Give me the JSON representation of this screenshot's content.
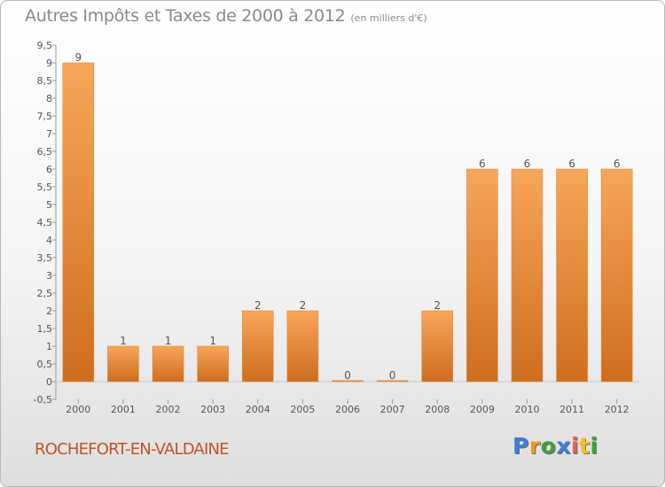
{
  "page": {
    "commune": "ROCHEFORT-EN-VALDAINE"
  },
  "brand": {
    "letters": [
      {
        "ch": "P",
        "color": "#3e7fd6"
      },
      {
        "ch": "r",
        "color": "#f29a1d"
      },
      {
        "ch": "o",
        "color": "#3ea33c"
      },
      {
        "ch": "x",
        "color": "#3e7fd6"
      },
      {
        "ch": "i",
        "color": "#e85c5c"
      },
      {
        "ch": "t",
        "color": "#f2c21d"
      },
      {
        "ch": "i",
        "color": "#3ea33c"
      }
    ]
  },
  "chart_data": {
    "type": "bar",
    "title": "Autres Impôts et Taxes de 2000 à 2012",
    "subtitle": "(en milliers d'€)",
    "xlabel": "",
    "ylabel": "",
    "categories": [
      "2000",
      "2001",
      "2002",
      "2003",
      "2004",
      "2005",
      "2006",
      "2007",
      "2008",
      "2009",
      "2010",
      "2011",
      "2012"
    ],
    "values": [
      9,
      1,
      1,
      1,
      2,
      2,
      0,
      0,
      2,
      6,
      6,
      6,
      6
    ],
    "data_labels": [
      "9",
      "1",
      "1",
      "1",
      "2",
      "2",
      "0",
      "0",
      "2",
      "6",
      "6",
      "6",
      "6"
    ],
    "ylim": [
      -0.5,
      9.5
    ],
    "yticks": [
      -0.5,
      0,
      0.5,
      1,
      1.5,
      2,
      2.5,
      3,
      3.5,
      4,
      4.5,
      5,
      5.5,
      6,
      6.5,
      7,
      7.5,
      8,
      8.5,
      9,
      9.5
    ],
    "ytick_labels": [
      "-0,5",
      "0",
      "0,5",
      "1",
      "1,5",
      "2",
      "2,5",
      "3",
      "3,5",
      "4",
      "4,5",
      "5",
      "5,5",
      "6",
      "6,5",
      "7",
      "7,5",
      "8",
      "8,5",
      "9",
      "9,5"
    ],
    "grid": false,
    "bar_color_top": "#f7a65a",
    "bar_color_bottom": "#cf6d1d",
    "label_color": "#555555",
    "axis_color": "#9a9a9a"
  }
}
